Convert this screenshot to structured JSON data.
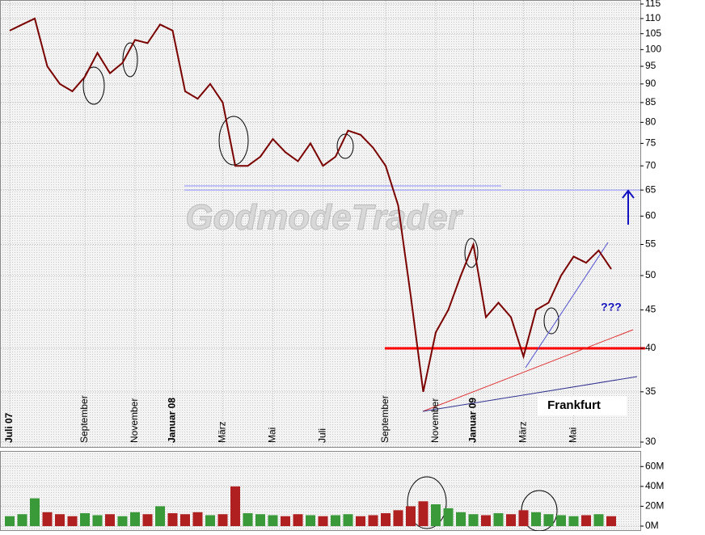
{
  "chart_data": [
    {
      "type": "line",
      "watermark": "GodmodeTrader",
      "log_scale": true,
      "grid": true,
      "categories": [
        "Juli 07",
        null,
        null,
        null,
        null,
        null,
        "September",
        null,
        null,
        null,
        "November",
        null,
        null,
        "Januar 08",
        null,
        null,
        null,
        "März",
        null,
        null,
        null,
        "Mai",
        null,
        null,
        null,
        "Juli",
        null,
        null,
        null,
        null,
        "September",
        null,
        null,
        null,
        "November",
        null,
        null,
        "Januar 09",
        null,
        null,
        null,
        "März",
        null,
        null,
        null,
        "Mai",
        null,
        null,
        null
      ],
      "series": [
        {
          "name": "Frankfurt",
          "color": "#7a0000",
          "values": [
            106,
            108,
            110,
            95,
            90,
            88,
            92,
            99,
            93,
            96,
            103,
            102,
            108,
            106,
            88,
            86,
            90,
            85,
            70,
            70,
            72,
            76,
            73,
            71,
            75,
            70,
            72,
            78,
            77,
            74,
            70,
            62,
            47,
            35,
            42,
            45,
            50,
            55,
            44,
            46,
            44,
            39,
            45,
            46,
            50,
            53,
            52,
            54,
            51
          ]
        }
      ],
      "ylim": [
        30,
        115
      ],
      "yticks": [
        30,
        35,
        40,
        45,
        50,
        55,
        60,
        65,
        70,
        75,
        80,
        85,
        90,
        95,
        100,
        105,
        110,
        115
      ],
      "reference_lines": [
        {
          "value": 65,
          "color": "#8c8cff"
        },
        {
          "value": 40,
          "color": "#ff0000"
        }
      ],
      "annotations": [
        "???",
        "Frankfurt"
      ]
    },
    {
      "type": "bar",
      "values": [
        10,
        12,
        28,
        14,
        12,
        10,
        13,
        11,
        12,
        10,
        14,
        12,
        20,
        13,
        12,
        14,
        11,
        12,
        40,
        13,
        12,
        11,
        10,
        12,
        11,
        10,
        11,
        12,
        10,
        11,
        13,
        16,
        20,
        25,
        22,
        18,
        14,
        12,
        11,
        13,
        12,
        16,
        14,
        12,
        11,
        10,
        11,
        12,
        10
      ],
      "ylim": [
        0,
        70
      ],
      "yticks": [
        {
          "value": 0,
          "label": "0M"
        },
        {
          "value": 20,
          "label": "20M"
        },
        {
          "value": 40,
          "label": "40M"
        },
        {
          "value": 60,
          "label": "60M"
        }
      ]
    }
  ]
}
